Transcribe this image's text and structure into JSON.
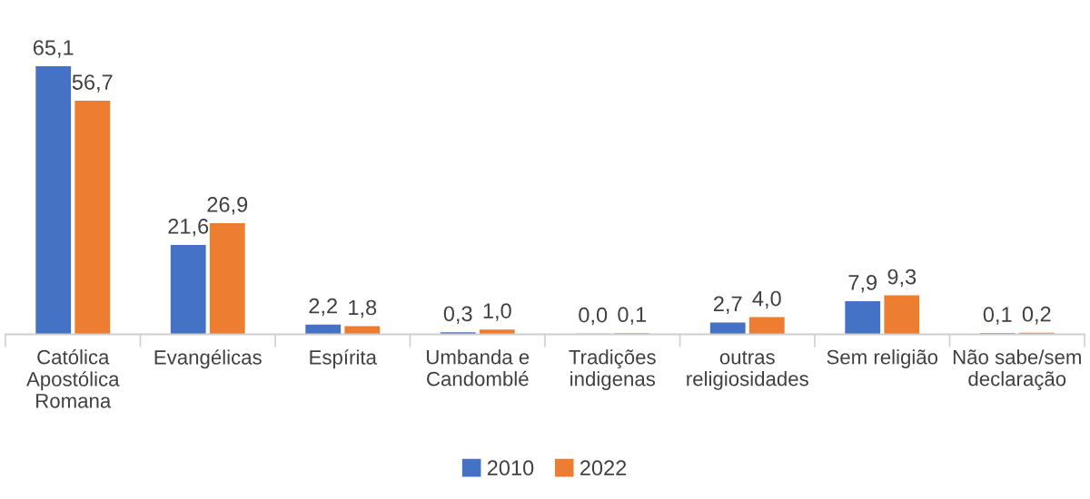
{
  "chart_data": {
    "type": "bar",
    "relative": false,
    "categories": [
      "Católica\nApostólica\nRomana",
      "Evangélicas",
      "Espírita",
      "Umbanda e\nCandomblé",
      "Tradições\nindigenas",
      "outras\nreligiosidades",
      "Sem religião",
      "Não sabe/sem\ndeclaração"
    ],
    "series": [
      {
        "name": "2010",
        "color": "#4472c4",
        "values": [
          65.1,
          21.6,
          2.2,
          0.3,
          0.0,
          2.7,
          7.9,
          0.1
        ],
        "value_labels": [
          "65,1",
          "21,6",
          "2,2",
          "0,3",
          "0,0",
          "2,7",
          "7,9",
          "0,1"
        ]
      },
      {
        "name": "2022",
        "color": "#ed7d31",
        "values": [
          56.7,
          26.9,
          1.8,
          1.0,
          0.1,
          4.0,
          9.3,
          0.2
        ],
        "value_labels": [
          "56,7",
          "26,9",
          "1,8",
          "1,0",
          "0,1",
          "4,0",
          "9,3",
          "0,2"
        ]
      }
    ],
    "legend": "bottom",
    "grid": false
  }
}
